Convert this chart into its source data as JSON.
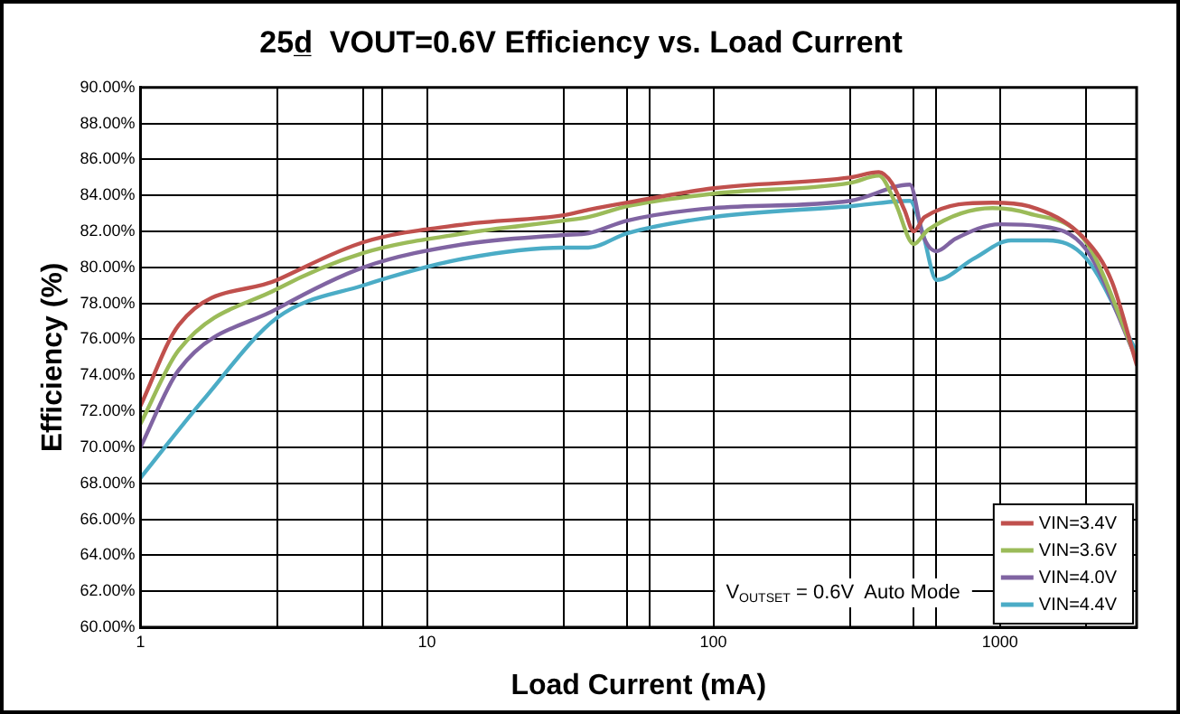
{
  "chart_data": {
    "type": "line",
    "title": "25d̲  VOUT=0.6V Efficiency vs. Load Current",
    "xlabel": "Load Current (mA)",
    "ylabel": "Efficiency (%)",
    "log": "x",
    "grid": true,
    "legend": "bottom right",
    "xlim": [
      1,
      3000
    ],
    "xticks": [
      1,
      {
        "value": 3,
        "label": null
      },
      {
        "value": 6,
        "label": null
      },
      {
        "value": 7,
        "label": null
      },
      10,
      {
        "value": 30,
        "label": null
      },
      {
        "value": 50,
        "label": null
      },
      {
        "value": 60,
        "label": null
      },
      100,
      {
        "value": 300,
        "label": null
      },
      {
        "value": 500,
        "label": null
      },
      {
        "value": 600,
        "label": null
      },
      1000,
      {
        "value": 2000,
        "label": null
      }
    ],
    "ylim": [
      60,
      90
    ],
    "yticks": [
      {
        "value": 60,
        "label": "60.00%"
      },
      {
        "value": 62,
        "label": "62.00%"
      },
      {
        "value": 64,
        "label": "64.00%"
      },
      {
        "value": 66,
        "label": "66.00%"
      },
      {
        "value": 68,
        "label": "68.00%"
      },
      {
        "value": 70,
        "label": "70.00%"
      },
      {
        "value": 72,
        "label": "72.00%"
      },
      {
        "value": 74,
        "label": "74.00%"
      },
      {
        "value": 76,
        "label": "76.00%"
      },
      {
        "value": 78,
        "label": "78.00%"
      },
      {
        "value": 80,
        "label": "80.00%"
      },
      {
        "value": 82,
        "label": "82.00%"
      },
      {
        "value": 84,
        "label": "84.00%"
      },
      {
        "value": 86,
        "label": "86.00%"
      },
      {
        "value": 88,
        "label": "88.00%"
      },
      {
        "value": 90,
        "label": "90.00%"
      }
    ],
    "annotations": [
      "V$_{OUTSET}$ = 0.6V  Auto Mode"
    ],
    "series": [
      {
        "name": "VIN=3.4V",
        "color": "#c0504d",
        "x": [
          1,
          1.36,
          3,
          6,
          13.6,
          30,
          36.6,
          50,
          100,
          300,
          378,
          419,
          464,
          500,
          546,
          942,
          1260,
          2000,
          2460,
          3000
        ],
        "values": [
          72.3,
          76.8,
          79.3,
          81.4,
          82.4,
          82.9,
          83.2,
          83.6,
          84.4,
          85.0,
          85.3,
          84.7,
          83.2,
          82.0,
          82.8,
          83.6,
          83.4,
          81.5,
          79.2,
          74.6
        ]
      },
      {
        "name": "VIN=3.6V",
        "color": "#9bbb59",
        "x": [
          1,
          1.36,
          3,
          6,
          13.6,
          30,
          36.6,
          50,
          100,
          300,
          378,
          431,
          500,
          562,
          942,
          1260,
          2000,
          3000
        ],
        "values": [
          71.3,
          75.4,
          78.8,
          80.8,
          81.9,
          82.6,
          82.8,
          83.4,
          84.1,
          84.7,
          85.1,
          83.6,
          81.3,
          82.1,
          83.3,
          83.0,
          81.4,
          74.9
        ]
      },
      {
        "name": "VIN=4.0V",
        "color": "#8064a2",
        "x": [
          1,
          1.36,
          3,
          6,
          13.6,
          30,
          36.6,
          50,
          100,
          300,
          485,
          538,
          600,
          701,
          1000,
          1364,
          2000,
          3000
        ],
        "values": [
          70.0,
          74.3,
          77.7,
          80.0,
          81.3,
          81.8,
          81.9,
          82.6,
          83.3,
          83.7,
          84.6,
          81.8,
          80.9,
          81.6,
          82.4,
          82.3,
          81.0,
          74.9
        ]
      },
      {
        "name": "VIN=4.4V",
        "color": "#4bacc6",
        "x": [
          1,
          1.65,
          3,
          6,
          13.6,
          30,
          36.6,
          50,
          100,
          300,
          485,
          538,
          600,
          813,
          1092,
          1468,
          2000,
          3000
        ],
        "values": [
          68.3,
          72.6,
          77.2,
          79.0,
          80.5,
          81.1,
          81.1,
          81.9,
          82.8,
          83.4,
          83.7,
          81.9,
          79.3,
          80.5,
          81.5,
          81.5,
          80.5,
          75.3
        ]
      }
    ]
  }
}
